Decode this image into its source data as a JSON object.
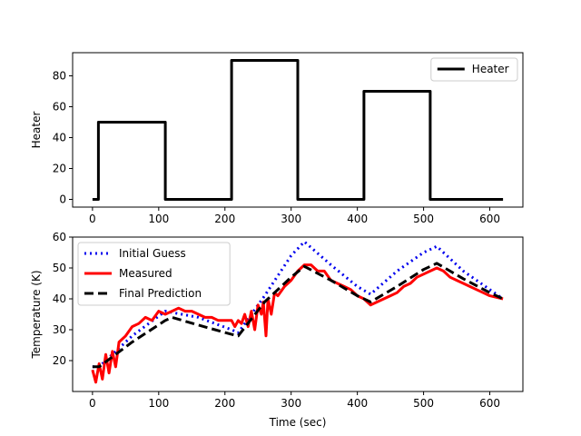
{
  "chart_data": [
    {
      "type": "line",
      "ylabel": "Heater",
      "xlim": [
        -30,
        650
      ],
      "ylim": [
        -5,
        95
      ],
      "xticks": [
        0,
        100,
        200,
        300,
        400,
        500,
        600
      ],
      "yticks": [
        0,
        20,
        40,
        60,
        80
      ],
      "legend_position": "top-right",
      "series": [
        {
          "name": "Heater",
          "color": "#000000",
          "style": "solid",
          "x": [
            0,
            9,
            9,
            110,
            110,
            210,
            210,
            310,
            310,
            410,
            410,
            510,
            510,
            620
          ],
          "y": [
            0,
            0,
            50,
            50,
            0,
            0,
            90,
            90,
            0,
            0,
            70,
            70,
            0,
            0
          ]
        }
      ]
    },
    {
      "type": "line",
      "xlabel": "Time (sec)",
      "ylabel": "Temperature (K)",
      "xlim": [
        -30,
        650
      ],
      "ylim": [
        10,
        60
      ],
      "xticks": [
        0,
        100,
        200,
        300,
        400,
        500,
        600
      ],
      "yticks": [
        20,
        30,
        40,
        50,
        60
      ],
      "legend_position": "top-left",
      "series": [
        {
          "name": "Initial Guess",
          "color": "#0000ee",
          "style": "dotted",
          "x": [
            0,
            10,
            60,
            110,
            160,
            210,
            220,
            260,
            300,
            320,
            360,
            400,
            420,
            460,
            500,
            520,
            560,
            600,
            620
          ],
          "y": [
            18,
            18,
            28,
            36,
            34,
            30,
            29,
            41,
            54,
            58.5,
            51,
            44,
            41.5,
            49,
            55,
            57,
            49,
            43,
            40
          ]
        },
        {
          "name": "Measured",
          "color": "#ff0000",
          "style": "solid",
          "x": [
            0,
            5,
            10,
            15,
            20,
            25,
            30,
            35,
            40,
            50,
            60,
            70,
            80,
            90,
            100,
            110,
            120,
            130,
            140,
            150,
            160,
            170,
            180,
            190,
            200,
            210,
            215,
            220,
            225,
            230,
            235,
            240,
            245,
            250,
            255,
            258,
            262,
            265,
            270,
            275,
            280,
            290,
            300,
            310,
            320,
            330,
            340,
            350,
            360,
            370,
            380,
            390,
            400,
            410,
            420,
            430,
            440,
            450,
            460,
            470,
            480,
            490,
            500,
            510,
            520,
            530,
            540,
            550,
            560,
            570,
            580,
            590,
            600,
            610,
            620
          ],
          "y": [
            17,
            13,
            19,
            14,
            22,
            16,
            23,
            18,
            26,
            28,
            31,
            32,
            34,
            33,
            36,
            35,
            36,
            37,
            36,
            36,
            35,
            34,
            34,
            33,
            33,
            33,
            31,
            33,
            32,
            35,
            31,
            36,
            30,
            38,
            35,
            39,
            28,
            40,
            35,
            42,
            41,
            44,
            46,
            49,
            51,
            51,
            49,
            49,
            46,
            45,
            44,
            43,
            41,
            40,
            38,
            39,
            40,
            41,
            42,
            44,
            45,
            47,
            48,
            49,
            50,
            49,
            47,
            46,
            45,
            44,
            43,
            42,
            41,
            40.5,
            40
          ]
        },
        {
          "name": "Final Prediction",
          "color": "#000000",
          "style": "dashed",
          "x": [
            0,
            10,
            60,
            110,
            120,
            160,
            210,
            220,
            260,
            300,
            320,
            360,
            400,
            420,
            460,
            500,
            520,
            560,
            600,
            620
          ],
          "y": [
            18,
            18,
            26,
            33,
            34,
            31.5,
            28.5,
            28,
            39,
            47,
            50.5,
            46,
            41,
            39,
            44,
            49.5,
            51.5,
            46.5,
            42,
            40
          ]
        }
      ]
    }
  ]
}
